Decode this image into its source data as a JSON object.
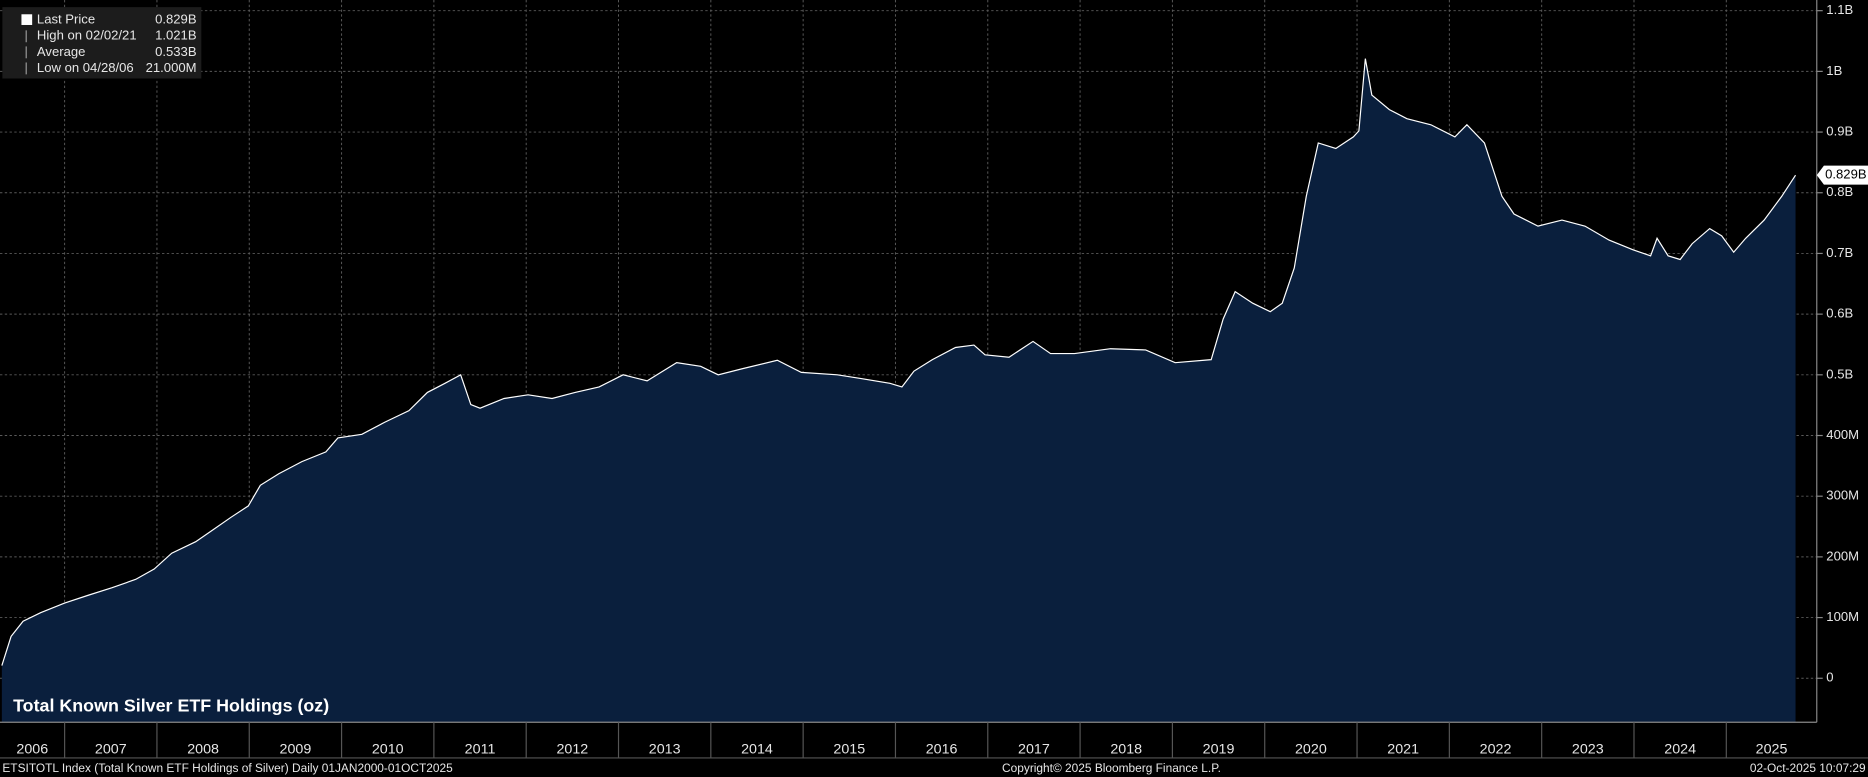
{
  "chart_data": {
    "type": "area",
    "title": "Total Known Silver ETF Holdings (oz)",
    "x": [
      2006.32,
      2006.42,
      2006.55,
      2006.74,
      2007.0,
      2007.26,
      2007.51,
      2007.77,
      2007.97,
      2008.16,
      2008.42,
      2008.61,
      2008.8,
      2008.99,
      2009.12,
      2009.32,
      2009.57,
      2009.83,
      2009.96,
      2010.22,
      2010.47,
      2010.73,
      2010.93,
      2011.12,
      2011.29,
      2011.4,
      2011.5,
      2011.76,
      2012.02,
      2012.28,
      2012.53,
      2012.79,
      2013.05,
      2013.31,
      2013.63,
      2013.89,
      2014.08,
      2014.34,
      2014.72,
      2014.98,
      2015.37,
      2015.62,
      2015.94,
      2016.07,
      2016.2,
      2016.4,
      2016.65,
      2016.85,
      2016.97,
      2017.23,
      2017.49,
      2017.68,
      2017.94,
      2018.33,
      2018.71,
      2019.03,
      2019.42,
      2019.55,
      2019.68,
      2019.87,
      2020.06,
      2020.19,
      2020.32,
      2020.45,
      2020.58,
      2020.77,
      2020.96,
      2021.02,
      2021.09,
      2021.16,
      2021.35,
      2021.54,
      2021.8,
      2022.06,
      2022.19,
      2022.38,
      2022.57,
      2022.7,
      2022.96,
      2023.22,
      2023.47,
      2023.73,
      2023.99,
      2024.18,
      2024.25,
      2024.37,
      2024.5,
      2024.63,
      2024.82,
      2024.95,
      2025.08,
      2025.21,
      2025.41,
      2025.6,
      2025.75
    ],
    "values": [
      21000000,
      69000000,
      94000000,
      108000000,
      124000000,
      137000000,
      149000000,
      163000000,
      180000000,
      206000000,
      225000000,
      245000000,
      265000000,
      284000000,
      318000000,
      337000000,
      357000000,
      373000000,
      396000000,
      402000000,
      422000000,
      441000000,
      471000000,
      486000000,
      500000000,
      451000000,
      445000000,
      461000000,
      467000000,
      461000000,
      471000000,
      480000000,
      500000000,
      490000000,
      520000000,
      514000000,
      500000000,
      510000000,
      524000000,
      504000000,
      500000000,
      494000000,
      486000000,
      480000000,
      506000000,
      525000000,
      545000000,
      549000000,
      533000000,
      529000000,
      555000000,
      535000000,
      535000000,
      543000000,
      541000000,
      520000000,
      525000000,
      592000000,
      637000000,
      618000000,
      604000000,
      618000000,
      676000000,
      794000000,
      882000000,
      873000000,
      892000000,
      902000000,
      1021000000,
      961000000,
      937000000,
      922000000,
      912000000,
      892000000,
      912000000,
      882000000,
      794000000,
      765000000,
      745000000,
      755000000,
      745000000,
      722000000,
      706000000,
      696000000,
      725000000,
      696000000,
      690000000,
      716000000,
      741000000,
      729000000,
      702000000,
      725000000,
      755000000,
      794000000,
      829000000
    ],
    "color": "#ffffff",
    "fill": "#0a1f3d",
    "last_label": "0.829B",
    "xlim": [
      2006.3,
      2025.98
    ],
    "xticks": [
      2006,
      2007,
      2008,
      2009,
      2010,
      2011,
      2012,
      2013,
      2014,
      2015,
      2016,
      2017,
      2018,
      2019,
      2020,
      2021,
      2022,
      2023,
      2024,
      2025
    ],
    "ylim": [
      -72500000,
      1117600000
    ],
    "yticks": [
      0,
      {
        "value": 100000000,
        "label": "100M"
      },
      {
        "value": 200000000,
        "label": "200M"
      },
      {
        "value": 300000000,
        "label": "300M"
      },
      {
        "value": 400000000,
        "label": "400M"
      },
      {
        "value": 500000000,
        "label": "0.5B"
      },
      {
        "value": 600000000,
        "label": "0.6B"
      },
      {
        "value": 700000000,
        "label": "0.7B"
      },
      {
        "value": 800000000,
        "label": "0.8B"
      },
      {
        "value": 900000000,
        "label": "0.9B"
      },
      {
        "value": 1000000000,
        "label": "1B"
      },
      {
        "value": 1100000000,
        "label": "1.1B"
      }
    ],
    "grid": true,
    "legend": [
      {
        "name": "Last Price",
        "label": "0.829B"
      },
      {
        "name": "High on 02/02/21",
        "label": "1.021B"
      },
      {
        "name": "Average",
        "label": "0.533B"
      },
      {
        "name": "Low on 04/28/06",
        "label": "21.000M"
      }
    ],
    "footer": {
      "left": "ETSITOTL Index (Total Known ETF Holdings of Silver) Daily 01JAN2000-01OCT2025",
      "center": "Copyright© 2025 Bloomberg Finance L.P.",
      "right": "02-Oct-2025 10:07:29"
    }
  }
}
